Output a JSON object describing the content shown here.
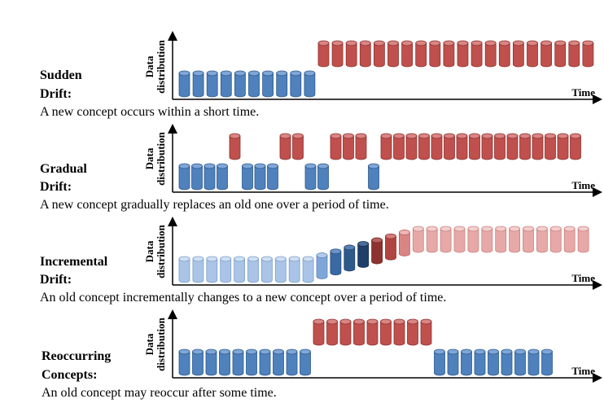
{
  "colors": {
    "blue": "#4f81bd",
    "blue_dark": "#2e5a8a",
    "blue_top": "#7fa6d8",
    "red": "#c0504d",
    "red_dark": "#8e3230",
    "red_top": "#d98583",
    "pale_blue": "#a9c4e6",
    "pale_blue_dark": "#7fa0c9",
    "pale_blue_top": "#cfdff3",
    "pale_red": "#e6a9a7",
    "pale_red_dark": "#c98381",
    "pale_red_top": "#f3cfce",
    "navy": "#1f3f6b",
    "navy_dark": "#142a4a",
    "navy_top": "#4a6c98",
    "mid_blue": "#3a6aa3",
    "mid_red": "#b04441"
  },
  "panels": [
    {
      "id": "sudden",
      "title_line1": "Sudden",
      "title_line2": "Drift:",
      "description": "A new concept occurs within a short time.",
      "y_axis_label_line1": "Data",
      "y_axis_label_line2": "distribution",
      "x_axis_label": "Time",
      "sequence": [
        "L",
        "L",
        "L",
        "L",
        "L",
        "L",
        "L",
        "L",
        "L",
        "L",
        "H",
        "H",
        "H",
        "H",
        "H",
        "H",
        "H",
        "H",
        "H",
        "H",
        "H",
        "H",
        "H",
        "H",
        "H",
        "H",
        "H",
        "H",
        "H",
        "H"
      ]
    },
    {
      "id": "gradual",
      "title_line1": "Gradual",
      "title_line2": "Drift:",
      "description": "A new concept gradually replaces an old one over a period of time.",
      "y_axis_label_line1": "Data",
      "y_axis_label_line2": "distribution",
      "x_axis_label": "Time",
      "sequence": [
        "L",
        "L",
        "L",
        "L",
        "H",
        "L",
        "L",
        "L",
        "H",
        "H",
        "L",
        "L",
        "H",
        "H",
        "H",
        "L",
        "H",
        "H",
        "H",
        "H",
        "H",
        "H",
        "H",
        "H",
        "H",
        "H",
        "H",
        "H",
        "H",
        "H",
        "H",
        "H"
      ]
    },
    {
      "id": "incremental",
      "title_line1": "Incremental",
      "title_line2": "Drift:",
      "description": "An old concept incrementally changes to a new concept over a period of time.",
      "y_axis_label_line1": "Data",
      "y_axis_label_line2": "distribution",
      "x_axis_label": "Time",
      "sequence": [
        "pL",
        "pL",
        "pL",
        "pL",
        "pL",
        "pL",
        "pL",
        "pL",
        "pL",
        "pL",
        "I1",
        "I2",
        "I3",
        "I4",
        "I5",
        "I6",
        "I7",
        "pH",
        "pH",
        "pH",
        "pH",
        "pH",
        "pH",
        "pH",
        "pH",
        "pH",
        "pH",
        "pH",
        "pH",
        "pH"
      ]
    },
    {
      "id": "reoccurring",
      "title_line1": "Reoccurring",
      "title_line2": "Concepts:",
      "description": "An old concept may reoccur after some time.",
      "y_axis_label_line1": "Data",
      "y_axis_label_line2": "distribution",
      "x_axis_label": "Time",
      "sequence": [
        "L",
        "L",
        "L",
        "L",
        "L",
        "L",
        "L",
        "L",
        "L",
        "L",
        "H",
        "H",
        "H",
        "H",
        "H",
        "H",
        "H",
        "H",
        "H",
        "L",
        "L",
        "L",
        "L",
        "L",
        "L",
        "L",
        "L",
        "L"
      ]
    }
  ]
}
